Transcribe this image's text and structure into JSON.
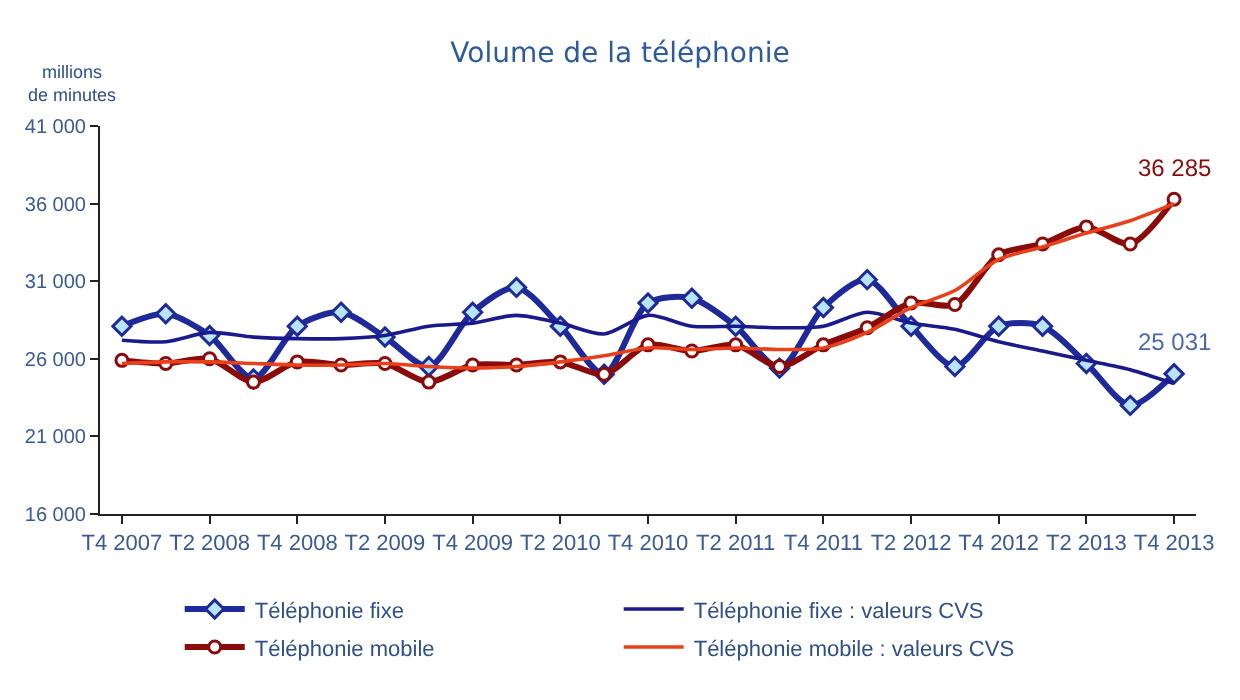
{
  "chart_data": {
    "type": "line",
    "title": "Volume de la téléphonie",
    "ylabel": "millions\nde minutes",
    "categories": [
      "T4 2007",
      null,
      "T2 2008",
      null,
      "T4 2008",
      null,
      "T2 2009",
      null,
      "T4 2009",
      null,
      "T2 2010",
      null,
      "T4 2010",
      null,
      "T2 2011",
      null,
      "T4 2011",
      null,
      "T2 2012",
      null,
      "T4 2012",
      null,
      "T2 2013",
      null,
      "T4 2013"
    ],
    "ylim": [
      16000,
      41000
    ],
    "yticks": [
      {
        "value": 16000,
        "label": "16 000"
      },
      {
        "value": 21000,
        "label": "21 000"
      },
      {
        "value": 26000,
        "label": "26 000"
      },
      {
        "value": 31000,
        "label": "31 000"
      },
      {
        "value": 36000,
        "label": "36 000"
      },
      {
        "value": 41000,
        "label": "41 000"
      }
    ],
    "legend": "bottom",
    "series": [
      {
        "name": "Téléphonie fixe",
        "color": "#1f2a9a",
        "marker": "diamond",
        "values": [
          28100,
          28900,
          27500,
          24700,
          28100,
          29000,
          27400,
          25500,
          29000,
          30600,
          28100,
          25000,
          29600,
          29900,
          28100,
          25400,
          29300,
          31100,
          28100,
          25500,
          28100,
          28100,
          25700,
          23000,
          25031
        ]
      },
      {
        "name": "Téléphonie fixe : valeurs CVS",
        "color": "#1a1a8c",
        "marker": "none",
        "values": [
          27200,
          27100,
          27700,
          27400,
          27300,
          27300,
          27500,
          28100,
          28300,
          28800,
          28300,
          27600,
          28800,
          28100,
          28100,
          28000,
          28100,
          29000,
          28300,
          27900,
          27100,
          26500,
          25900,
          25300,
          24400
        ]
      },
      {
        "name": "Téléphonie mobile",
        "color": "#8b0a0a",
        "marker": "circle",
        "values": [
          25900,
          25700,
          26000,
          24500,
          25800,
          25600,
          25700,
          24500,
          25600,
          25600,
          25800,
          25000,
          26900,
          26500,
          26900,
          25500,
          26900,
          28000,
          29600,
          29500,
          32700,
          33400,
          34500,
          33400,
          36285
        ]
      },
      {
        "name": "Téléphonie mobile : valeurs CVS",
        "color": "#e8401a",
        "marker": "none",
        "values": [
          25700,
          25800,
          25800,
          25700,
          25600,
          25600,
          25700,
          25500,
          25400,
          25500,
          25800,
          26200,
          26700,
          26600,
          26700,
          26600,
          26700,
          27700,
          29300,
          30400,
          32400,
          33200,
          34100,
          34900,
          36000
        ]
      }
    ],
    "annotations": [
      {
        "text": "36 285",
        "x": "T4 2013",
        "y": 36285
      },
      {
        "text": "25 031",
        "x": "T4 2013",
        "y": 25031
      }
    ]
  }
}
